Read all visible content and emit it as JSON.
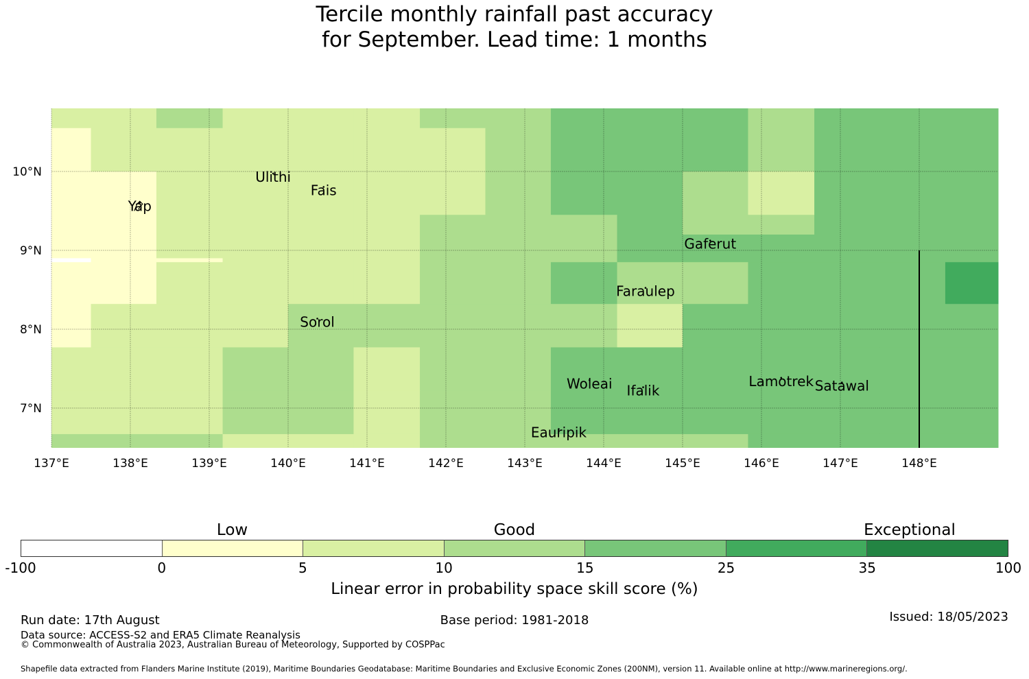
{
  "title_line1": "Tercile monthly rainfall past accuracy",
  "title_line2": "for September. Lead time: 1 months",
  "map": {
    "lon_labels": [
      "137°E",
      "138°E",
      "139°E",
      "140°E",
      "141°E",
      "142°E",
      "143°E",
      "144°E",
      "145°E",
      "146°E",
      "147°E",
      "148°E"
    ],
    "lat_labels": [
      "10°N",
      "9°N",
      "8°N",
      "7°N"
    ],
    "places": [
      {
        "name": "Ulithi",
        "lon": 139.81,
        "lat": 9.87
      },
      {
        "name": "Fais",
        "lon": 140.45,
        "lat": 9.7
      },
      {
        "name": "Yap",
        "lon": 138.12,
        "lat": 9.5
      },
      {
        "name": "Gaferut",
        "lon": 145.35,
        "lat": 9.02
      },
      {
        "name": "Faraulep",
        "lon": 144.53,
        "lat": 8.42
      },
      {
        "name": "Sorol",
        "lon": 140.37,
        "lat": 8.03
      },
      {
        "name": "Woleai",
        "lon": 143.82,
        "lat": 7.25
      },
      {
        "name": "Ifalik",
        "lon": 144.5,
        "lat": 7.16
      },
      {
        "name": "Lamotrek",
        "lon": 146.25,
        "lat": 7.28
      },
      {
        "name": "Satawal",
        "lon": 147.02,
        "lat": 7.22
      },
      {
        "name": "Eauripik",
        "lon": 143.43,
        "lat": 6.63
      }
    ],
    "grid_lon_edges": [
      136.5,
      137.5,
      138.33,
      139.17,
      140,
      140.83,
      141.67,
      142.5,
      143.33,
      144.17,
      145,
      145.83,
      146.67,
      147.5,
      148.33,
      149.17
    ],
    "grid_lat_edges": [
      10.8,
      10.55,
      10,
      9.45,
      9.2,
      8.9,
      8.85,
      8.32,
      7.77,
      7.22,
      6.67,
      6.5
    ],
    "cells": [
      [
        2,
        2,
        3,
        2,
        2,
        2,
        3,
        3,
        4,
        4,
        4,
        3,
        4,
        4,
        4
      ],
      [
        1,
        2,
        2,
        2,
        2,
        2,
        2,
        3,
        4,
        4,
        4,
        3,
        4,
        4,
        4
      ],
      [
        1,
        1,
        2,
        2,
        2,
        2,
        2,
        3,
        4,
        4,
        3,
        2,
        4,
        4,
        4
      ],
      [
        1,
        1,
        2,
        2,
        2,
        2,
        3,
        3,
        3,
        4,
        3,
        3,
        4,
        4,
        4
      ],
      [
        1,
        1,
        2,
        2,
        2,
        2,
        3,
        3,
        3,
        4,
        4,
        4,
        4,
        4,
        4
      ],
      [
        0,
        1,
        1,
        2,
        2,
        2,
        3,
        3,
        3,
        4,
        4,
        4,
        4,
        4,
        4
      ],
      [
        1,
        1,
        2,
        2,
        2,
        2,
        3,
        3,
        4,
        3,
        3,
        4,
        4,
        4,
        5
      ],
      [
        1,
        2,
        2,
        2,
        3,
        3,
        3,
        3,
        3,
        2,
        4,
        4,
        4,
        4,
        4
      ],
      [
        2,
        2,
        2,
        3,
        3,
        2,
        3,
        3,
        4,
        4,
        4,
        4,
        4,
        4,
        4
      ],
      [
        2,
        2,
        2,
        3,
        3,
        2,
        3,
        3,
        4,
        4,
        4,
        4,
        4,
        4,
        4
      ],
      [
        3,
        3,
        3,
        2,
        2,
        2,
        3,
        3,
        3,
        3,
        3,
        4,
        4,
        4,
        4
      ]
    ],
    "boundary_lon": 148.0,
    "boundary_lat_range": [
      6.5,
      9.0
    ]
  },
  "colorbar": {
    "categories": [
      {
        "label": "Low",
        "at": 1.5
      },
      {
        "label": "Good",
        "at": 3.5
      },
      {
        "label": "Exceptional",
        "at": 6.3
      }
    ],
    "ticks": [
      "-100",
      "0",
      "5",
      "10",
      "15",
      "25",
      "35",
      "100"
    ],
    "colors": [
      "#ffffff",
      "#ffffcc",
      "#d9f0a3",
      "#addd8e",
      "#78c679",
      "#41ab5d",
      "#238443"
    ],
    "title": "Linear error in probability space skill score (%)"
  },
  "footer": {
    "run_date": "Run date: 17th August",
    "base_period": "Base period: 1981-2018",
    "issued": "Issued: 18/05/2023",
    "data_source": "Data source: ACCESS-S2 and ERA5 Climate Reanalysis",
    "copyright": "© Commonwealth of Australia 2023, Australian Bureau of Meteorology, Supported by COSPPac",
    "shapefile": "Shapefile data extracted from Flanders Marine Institute (2019), Maritime Boundaries Geodatabase: Maritime Boundaries and Exclusive Economic Zones (200NM), version 11. Available online at http://www.marineregions.org/."
  }
}
